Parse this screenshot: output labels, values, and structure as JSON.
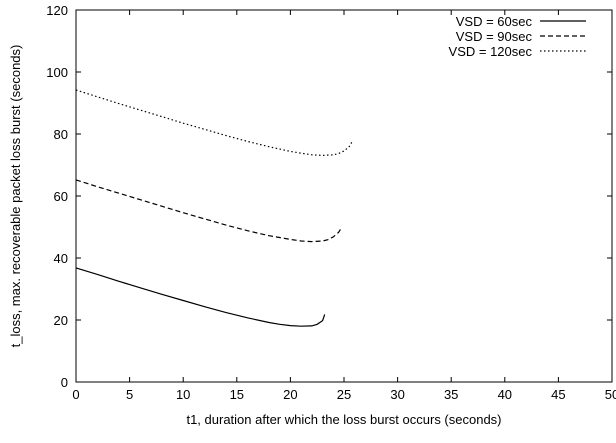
{
  "chart_data": {
    "type": "line",
    "title": "",
    "xlabel": "t1, duration after which the loss burst occurs (seconds)",
    "ylabel": "t_loss, max. recoverable packet loss burst (seconds)",
    "xlim": [
      0,
      50
    ],
    "ylim": [
      0,
      120
    ],
    "xticks": [
      0,
      5,
      10,
      15,
      20,
      25,
      30,
      35,
      40,
      45,
      50
    ],
    "yticks": [
      0,
      20,
      40,
      60,
      80,
      100,
      120
    ],
    "grid": false,
    "legend_position": "top-right",
    "series": [
      {
        "name": "VSD = 60sec",
        "style": "solid",
        "x": [
          0,
          2,
          4,
          6,
          8,
          10,
          12,
          14,
          16,
          18,
          19,
          20,
          21,
          22,
          22.5,
          23,
          23.2
        ],
        "y": [
          36.8,
          34.7,
          32.5,
          30.4,
          28.3,
          26.3,
          24.3,
          22.4,
          20.7,
          19.2,
          18.6,
          18.2,
          18.0,
          18.1,
          18.6,
          19.8,
          21.8
        ]
      },
      {
        "name": "VSD = 90sec",
        "style": "dashed",
        "x": [
          0,
          2,
          4,
          6,
          8,
          10,
          12,
          14,
          16,
          18,
          20,
          21,
          22,
          23,
          23.5,
          24,
          24.5,
          24.8
        ],
        "y": [
          65.2,
          63.0,
          60.9,
          58.8,
          56.7,
          54.6,
          52.6,
          50.6,
          48.8,
          47.2,
          46.0,
          45.5,
          45.3,
          45.5,
          45.9,
          46.8,
          48.3,
          50.0
        ]
      },
      {
        "name": "VSD = 120sec",
        "style": "dotted",
        "x": [
          0,
          2,
          4,
          6,
          8,
          10,
          12,
          14,
          16,
          18,
          20,
          21,
          22,
          23,
          24,
          24.5,
          25,
          25.5,
          25.8
        ],
        "y": [
          94.2,
          92.0,
          89.8,
          87.7,
          85.6,
          83.5,
          81.5,
          79.5,
          77.6,
          75.9,
          74.4,
          73.8,
          73.3,
          73.1,
          73.3,
          73.7,
          74.5,
          76.0,
          77.8
        ]
      }
    ]
  }
}
